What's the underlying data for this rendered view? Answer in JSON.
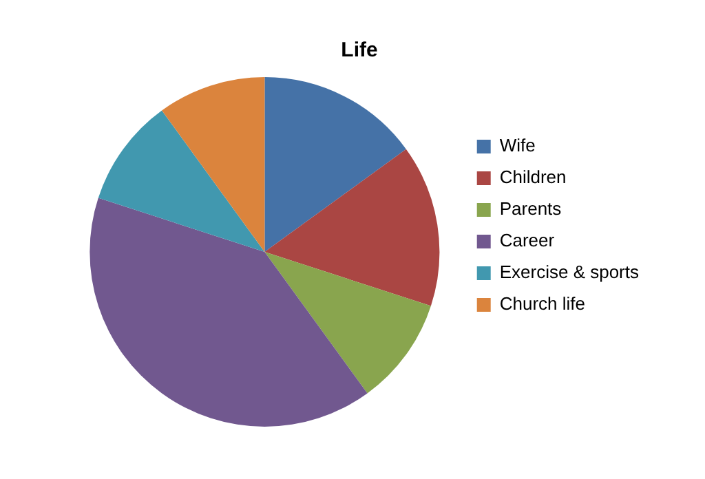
{
  "chart_data": {
    "type": "pie",
    "title": "Life",
    "categories": [
      "Wife",
      "Children",
      "Parents",
      "Career",
      "Exercise & sports",
      "Church life"
    ],
    "values": [
      15,
      15,
      10,
      40,
      10,
      10
    ],
    "colors": [
      "#4572a7",
      "#aa4643",
      "#89a54e",
      "#71588f",
      "#4198af",
      "#db843d"
    ],
    "legend": "right"
  }
}
